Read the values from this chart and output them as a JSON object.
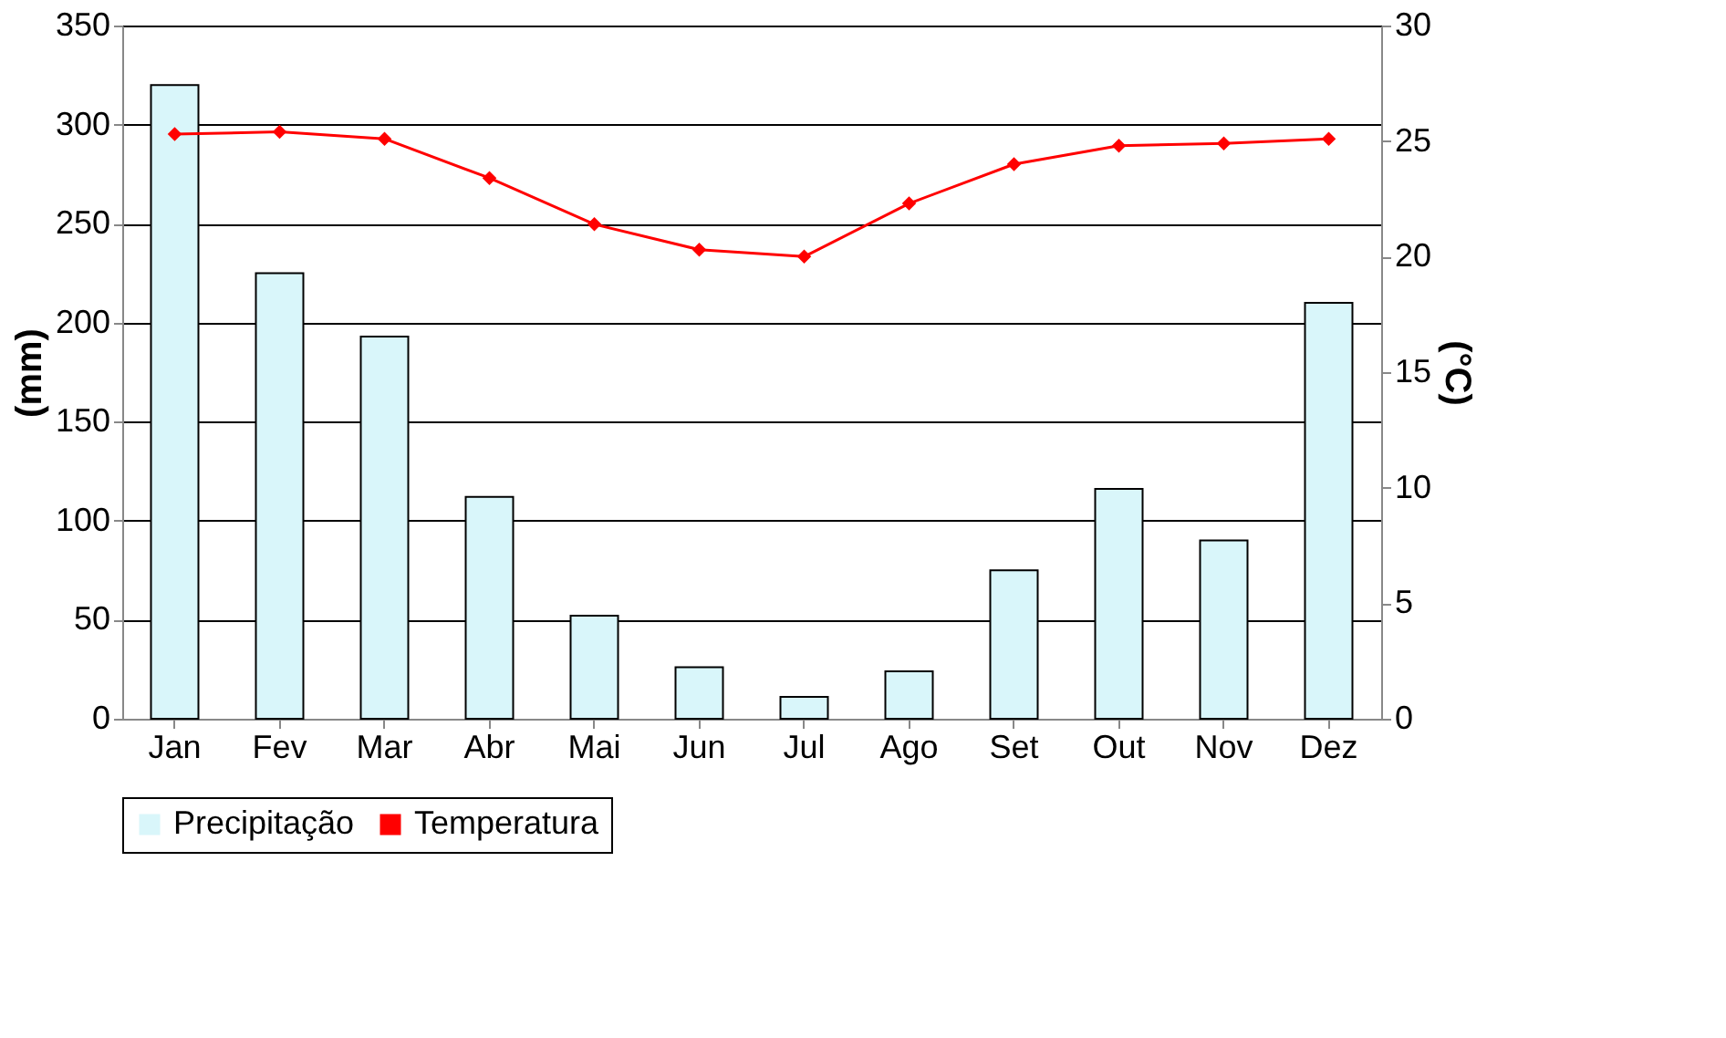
{
  "chart_data": {
    "type": "bar",
    "ylabel": "(mm)",
    "y2label": "(°C)",
    "categories": [
      "Jan",
      "Fev",
      "Mar",
      "Abr",
      "Mai",
      "Jun",
      "Jul",
      "Ago",
      "Set",
      "Out",
      "Nov",
      "Dez"
    ],
    "series": [
      {
        "name": "Precipitação",
        "color": "#d9f6fa",
        "values": [
          320,
          225,
          193,
          112,
          52,
          26,
          11,
          24,
          75,
          116,
          90,
          210
        ]
      },
      {
        "name": "Temperatura",
        "type": "line",
        "axis": "y2",
        "color": "#ff0000",
        "marker": "diamond",
        "values": [
          25.3,
          25.4,
          25.1,
          23.4,
          21.4,
          20.3,
          20.0,
          22.3,
          24.0,
          24.8,
          24.9,
          25.1
        ]
      }
    ],
    "ylim": [
      0,
      350
    ],
    "yticks": [
      0,
      50,
      100,
      150,
      200,
      250,
      300,
      350
    ],
    "y2lim": [
      0,
      30
    ],
    "y2ticks": [
      0,
      5,
      10,
      15,
      20,
      25,
      30
    ],
    "grid": "y",
    "legend": "bottom"
  }
}
